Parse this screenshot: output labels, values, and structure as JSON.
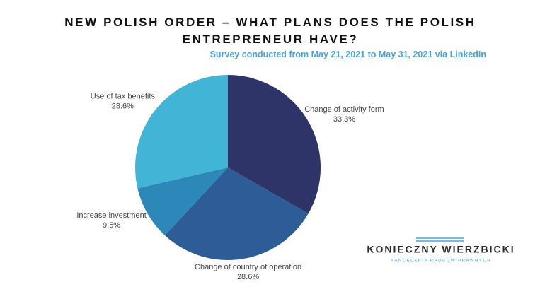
{
  "chart_data": {
    "type": "pie",
    "title": "NEW POLISH ORDER – WHAT PLANS DOES THE POLISH ENTREPRENEUR HAVE?",
    "subtitle": "Survey conducted from May 21, 2021 to May 31, 2021 via LinkedIn",
    "categories": [
      "Change of activity form",
      "Change of country of operation",
      "Increase investment",
      "Use of tax benefits"
    ],
    "values": [
      33.3,
      28.6,
      9.5,
      28.6
    ],
    "value_labels": [
      "33.3%",
      "28.6%",
      "9.5%",
      "28.6%"
    ],
    "colors": [
      "#2e3468",
      "#2e5c96",
      "#2b88b8",
      "#42b5d6"
    ],
    "annotations": [
      "KONIECZNY WIERZBICKI",
      "KANCELARIA RADCÓW PRAWNYCH"
    ]
  }
}
